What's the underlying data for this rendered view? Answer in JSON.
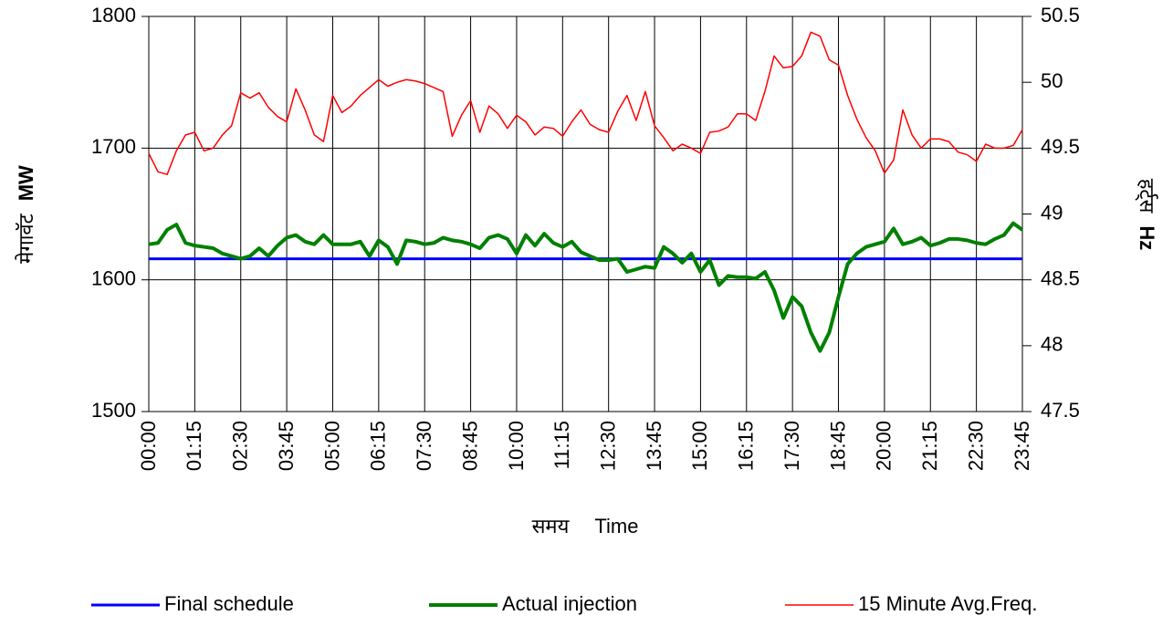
{
  "chart_data": {
    "type": "line",
    "ylabel": [
      "मेगावॅट",
      "MW"
    ],
    "y2label": [
      "हर्ट्स",
      "Hz"
    ],
    "xlabel": [
      "समय",
      "Time"
    ],
    "categories": [
      "00:00",
      null,
      null,
      null,
      null,
      "01:15",
      null,
      null,
      null,
      null,
      "02:30",
      null,
      null,
      null,
      null,
      "03:45",
      null,
      null,
      null,
      null,
      "05:00",
      null,
      null,
      null,
      null,
      "06:15",
      null,
      null,
      null,
      null,
      "07:30",
      null,
      null,
      null,
      null,
      "08:45",
      null,
      null,
      null,
      null,
      "10:00",
      null,
      null,
      null,
      null,
      "11:15",
      null,
      null,
      null,
      null,
      "12:30",
      null,
      null,
      null,
      null,
      "13:45",
      null,
      null,
      null,
      null,
      "15:00",
      null,
      null,
      null,
      null,
      "16:15",
      null,
      null,
      null,
      null,
      "17:30",
      null,
      null,
      null,
      null,
      "18:45",
      null,
      null,
      null,
      null,
      "20:00",
      null,
      null,
      null,
      null,
      "21:15",
      null,
      null,
      null,
      null,
      "22:30",
      null,
      null,
      null,
      null,
      "23:45"
    ],
    "ylim": [
      1500,
      1800
    ],
    "yticks": [
      1500,
      1600,
      1700,
      1800
    ],
    "y2lim": [
      47.5,
      50.5
    ],
    "y2ticks": [
      47.5,
      48,
      48.5,
      49,
      49.5,
      50,
      50.5
    ],
    "grid": true,
    "legend": "bottom",
    "series": [
      {
        "name": "Final schedule",
        "color": "#0000ff",
        "values": [
          1616,
          1616,
          1616,
          1616,
          1616,
          1616,
          1616,
          1616,
          1616,
          1616,
          1616,
          1616,
          1616,
          1616,
          1616,
          1616,
          1616,
          1616,
          1616,
          1616,
          1616,
          1616,
          1616,
          1616,
          1616,
          1616,
          1616,
          1616,
          1616,
          1616,
          1616,
          1616,
          1616,
          1616,
          1616,
          1616,
          1616,
          1616,
          1616,
          1616,
          1616,
          1616,
          1616,
          1616,
          1616,
          1616,
          1616,
          1616,
          1616,
          1616,
          1616,
          1616,
          1616,
          1616,
          1616,
          1616,
          1616,
          1616,
          1616,
          1616,
          1616,
          1616,
          1616,
          1616,
          1616,
          1616,
          1616,
          1616,
          1616,
          1616,
          1616,
          1616,
          1616,
          1616,
          1616,
          1616,
          1616,
          1616,
          1616,
          1616,
          1616,
          1616,
          1616,
          1616,
          1616,
          1616,
          1616,
          1616,
          1616,
          1616,
          1616,
          1616,
          1616,
          1616,
          1616,
          1616
        ]
      },
      {
        "name": "Actual injection",
        "color": "#008000",
        "values": [
          1627,
          1628,
          1638,
          1642,
          1628,
          1626,
          1625,
          1624,
          1620,
          1618,
          1616,
          1618,
          1624,
          1618,
          1626,
          1632,
          1634,
          1629,
          1627,
          1634,
          1627,
          1627,
          1627,
          1629,
          1618,
          1630,
          1625,
          1612,
          1630,
          1629,
          1627,
          1628,
          1632,
          1630,
          1629,
          1627,
          1624,
          1632,
          1634,
          1631,
          1620,
          1634,
          1626,
          1635,
          1628,
          1625,
          1629,
          1621,
          1618,
          1615,
          1615,
          1616,
          1606,
          1608,
          1610,
          1609,
          1625,
          1620,
          1613,
          1620,
          1606,
          1615,
          1596,
          1603,
          1602,
          1602,
          1601,
          1606,
          1592,
          1571,
          1587,
          1580,
          1560,
          1546,
          1560,
          1587,
          1612,
          1620,
          1625,
          1627,
          1629,
          1639,
          1627,
          1629,
          1632,
          1626,
          1628,
          1631,
          1631,
          1630,
          1628,
          1627,
          1631,
          1634,
          1643,
          1638
        ]
      },
      {
        "name": "15 Minute Avg.Freq.",
        "color": "#ff0000",
        "axis": "y2",
        "values": [
          49.46,
          49.32,
          49.3,
          49.48,
          49.6,
          49.62,
          49.48,
          49.5,
          49.6,
          49.67,
          49.92,
          49.88,
          49.92,
          49.81,
          49.74,
          49.7,
          49.95,
          49.79,
          49.6,
          49.55,
          49.9,
          49.77,
          49.82,
          49.9,
          49.96,
          50.02,
          49.97,
          50.0,
          50.02,
          50.01,
          49.99,
          49.96,
          49.93,
          49.59,
          49.75,
          49.86,
          49.62,
          49.82,
          49.76,
          49.65,
          49.75,
          49.7,
          49.6,
          49.66,
          49.65,
          49.59,
          49.7,
          49.79,
          49.68,
          49.64,
          49.62,
          49.78,
          49.9,
          49.71,
          49.93,
          49.67,
          49.58,
          49.48,
          49.53,
          49.5,
          49.46,
          49.62,
          49.63,
          49.66,
          49.76,
          49.76,
          49.71,
          49.93,
          50.2,
          50.11,
          50.12,
          50.2,
          50.38,
          50.35,
          50.17,
          50.13,
          49.9,
          49.72,
          49.58,
          49.48,
          49.31,
          49.41,
          49.79,
          49.6,
          49.5,
          49.57,
          49.57,
          49.55,
          49.47,
          49.45,
          49.4,
          49.53,
          49.5,
          49.5,
          49.52,
          49.64
        ]
      }
    ]
  }
}
